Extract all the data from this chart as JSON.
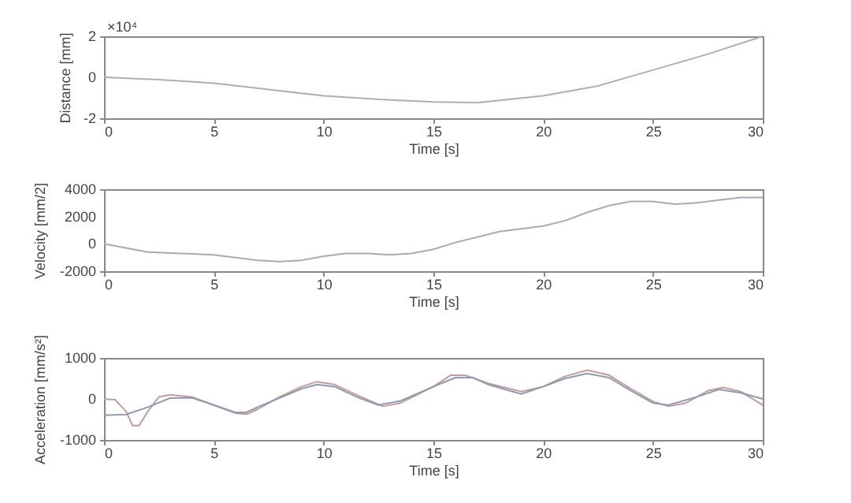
{
  "chart_data": [
    {
      "type": "line",
      "xlabel": "Time [s]",
      "ylabel": "Distance [mm]",
      "annotations": [
        "×10⁴"
      ],
      "xlim": [
        0,
        30
      ],
      "xticks": [
        0,
        5,
        10,
        15,
        20,
        25,
        30
      ],
      "ylim": [
        -2,
        2
      ],
      "yticks": [
        -2,
        0,
        2
      ],
      "grid": false,
      "series": [
        {
          "color": "#b8aaaa",
          "x": [
            0,
            2.5,
            5,
            7.5,
            10,
            12.5,
            15,
            17,
            20,
            22.5,
            25,
            27.5,
            30
          ],
          "values": [
            0,
            -0.12,
            -0.29,
            -0.6,
            -0.9,
            -1.08,
            -1.2,
            -1.24,
            -0.9,
            -0.42,
            0.35,
            1.13,
            2
          ]
        }
      ]
    },
    {
      "type": "line",
      "xlabel": "Time [s]",
      "ylabel": "Velocity [mm/2]",
      "xlim": [
        0,
        30
      ],
      "xticks": [
        0,
        5,
        10,
        15,
        20,
        25,
        30
      ],
      "ylim": [
        -2000,
        4000
      ],
      "yticks": [
        -2000,
        0,
        2000,
        4000
      ],
      "grid": false,
      "series": [
        {
          "color": "#a8aab8",
          "x": [
            0,
            1,
            2,
            3.5,
            5,
            6,
            7,
            8,
            9,
            10,
            11,
            12,
            13,
            14,
            15,
            16,
            17,
            18,
            19,
            20,
            21,
            22,
            23,
            24,
            25,
            26,
            27,
            28,
            29,
            30
          ],
          "values": [
            0,
            -300,
            -600,
            -700,
            -800,
            -1000,
            -1200,
            -1300,
            -1200,
            -900,
            -700,
            -700,
            -800,
            -700,
            -400,
            100,
            500,
            900,
            1100,
            1300,
            1700,
            2300,
            2800,
            3100,
            3100,
            2900,
            3000,
            3200,
            3400,
            3400
          ]
        }
      ]
    },
    {
      "type": "line",
      "xlabel": "Time [s]",
      "ylabel": "Acceleration [mm/s²]",
      "xlim": [
        0,
        30
      ],
      "xticks": [
        0,
        5,
        10,
        15,
        20,
        25,
        30
      ],
      "ylim": [
        -1000,
        1000
      ],
      "yticks": [
        -1000,
        0,
        1000
      ],
      "grid": false,
      "series": [
        {
          "color": "#c29c9c",
          "x": [
            0,
            0.5,
            1,
            1.3,
            1.6,
            2,
            2.5,
            3,
            4,
            5,
            6,
            6.5,
            7,
            8,
            9,
            9.7,
            10.5,
            11.5,
            12.7,
            13.5,
            15,
            15.8,
            16.5,
            17.5,
            19,
            20,
            21,
            22,
            23,
            24,
            25,
            25.7,
            26.5,
            27.5,
            28.2,
            29,
            30
          ],
          "values": [
            0,
            -20,
            -300,
            -650,
            -650,
            -300,
            50,
            100,
            50,
            -150,
            -350,
            -370,
            -250,
            50,
            300,
            420,
            350,
            100,
            -180,
            -100,
            300,
            580,
            570,
            380,
            180,
            300,
            550,
            700,
            580,
            250,
            -60,
            -180,
            -100,
            200,
            280,
            180,
            -150
          ]
        },
        {
          "color": "#8e9ab2",
          "x": [
            0,
            1,
            2,
            3,
            4,
            5,
            6,
            6.5,
            7,
            9,
            9.7,
            10.5,
            11.5,
            12.5,
            13.5,
            15,
            16,
            16.8,
            17.5,
            19,
            20,
            21,
            22,
            23,
            24,
            25,
            25.7,
            27,
            28,
            29,
            30
          ],
          "values": [
            -400,
            -380,
            -200,
            20,
            30,
            -150,
            -330,
            -320,
            -200,
            250,
            350,
            300,
            50,
            -150,
            -50,
            300,
            520,
            520,
            350,
            120,
            300,
            500,
            620,
            520,
            200,
            -100,
            -150,
            50,
            230,
            150,
            0
          ]
        }
      ]
    }
  ]
}
